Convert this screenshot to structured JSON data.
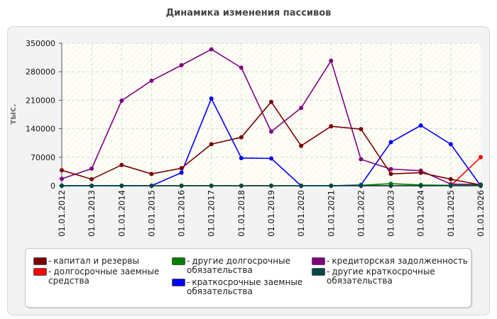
{
  "chart_data": {
    "type": "line",
    "title": "Динамика изменения пассивов",
    "ylabel": "тыс.",
    "xlabel": "",
    "ylim": [
      0,
      350000
    ],
    "yticks": [
      0,
      70000,
      140000,
      210000,
      280000,
      350000
    ],
    "yticklabels": [
      "0",
      "70000",
      "140000",
      "210000",
      "280000",
      "350000"
    ],
    "categories": [
      "01.01.2012",
      "01.01.2013",
      "01.01.2014",
      "01.01.2015",
      "01.01.2016",
      "01.01.2017",
      "01.01.2018",
      "01.01.2019",
      "01.01.2020",
      "01.01.2021",
      "01.01.2022",
      "01.01.2023",
      "01.01.2024",
      "01.01.2025",
      "01.01.2026"
    ],
    "grid": true,
    "legend_position": "bottom",
    "series": [
      {
        "name": "капитал и резервы",
        "color": "#7a0000",
        "values": [
          38000,
          16000,
          51000,
          29000,
          43000,
          102000,
          119000,
          206000,
          98000,
          146000,
          139000,
          29000,
          32000,
          16000,
          2000
        ]
      },
      {
        "name": "долгосрочные заемные средства",
        "color": "#ff0000",
        "values": [
          0,
          0,
          0,
          0,
          0,
          0,
          0,
          0,
          0,
          0,
          0,
          0,
          0,
          0,
          70000
        ]
      },
      {
        "name": "другие долгосрочные обязательства",
        "color": "#008000",
        "values": [
          0,
          0,
          0,
          0,
          0,
          0,
          0,
          0,
          0,
          0,
          1000,
          5000,
          2000,
          1000,
          1000
        ]
      },
      {
        "name": "краткосрочные заемные обязательства",
        "color": "#0000ff",
        "values": [
          0,
          0,
          0,
          0,
          32000,
          214000,
          68000,
          67000,
          0,
          0,
          2000,
          107000,
          148000,
          102000,
          0
        ]
      },
      {
        "name": "кредиторская задолженность",
        "color": "#800080",
        "values": [
          17000,
          42000,
          209000,
          258000,
          296000,
          335000,
          290000,
          133000,
          191000,
          307000,
          65000,
          41000,
          37000,
          4000,
          3000
        ]
      },
      {
        "name": "другие краткосрочные обязательства",
        "color": "#004848",
        "values": [
          0,
          0,
          0,
          0,
          0,
          0,
          0,
          0,
          0,
          0,
          0,
          0,
          0,
          0,
          0
        ]
      }
    ]
  }
}
